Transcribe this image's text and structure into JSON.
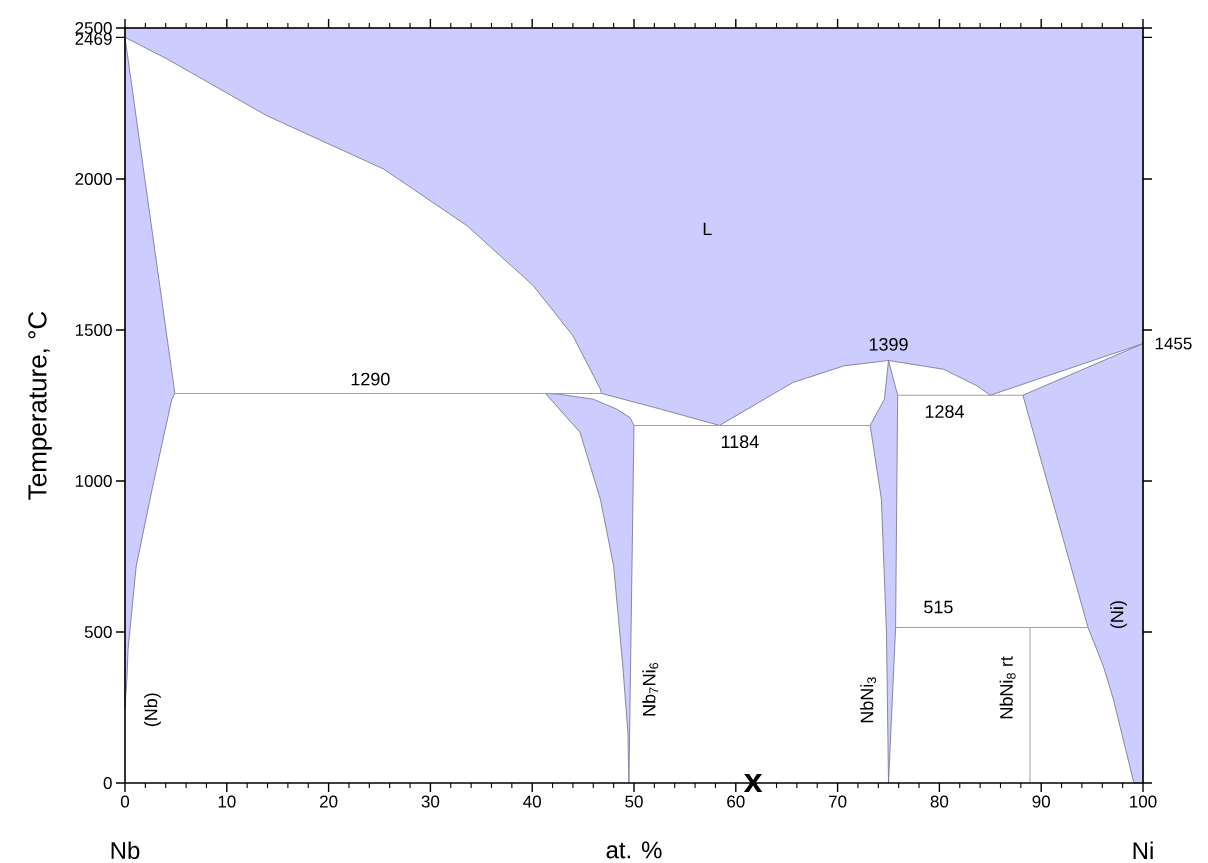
{
  "chart_data": {
    "type": "area",
    "xlabel": "at. %",
    "ylabel": "Temperature, °C",
    "xlim": [
      0,
      100
    ],
    "ylim": [
      0,
      2500
    ],
    "xticks": [
      0,
      10,
      20,
      30,
      40,
      50,
      60,
      70,
      80,
      90,
      100
    ],
    "yticks": [
      0,
      500,
      1000,
      1500,
      2000,
      2469,
      2500
    ],
    "series": [
      {
        "type": "area",
        "color": "#ccccff",
        "x": [
          0,
          4.1,
          13.9,
          25.4,
          33.6,
          40.1,
          44.0,
          46.7,
          46.8,
          52.6,
          58.4,
          65.6,
          70.6,
          75.0,
          80.4,
          83.7,
          85.0,
          100,
          100,
          0
        ],
        "values": [
          2469,
          2398,
          2210,
          2033,
          1845,
          1647,
          1481,
          1304,
          1290,
          1238,
          1184,
          1326,
          1381,
          1399,
          1370,
          1315,
          1284,
          1455,
          2500,
          2500
        ]
      },
      {
        "type": "area",
        "color": "#ccccff",
        "x": [
          0,
          4.9,
          4.6,
          2.8,
          1.1,
          0.3,
          0.2,
          0
        ],
        "values": [
          2469,
          1290,
          1270,
          995,
          718,
          442,
          353,
          250
        ]
      },
      {
        "type": "area",
        "color": "#ccccff",
        "x": [
          41.3,
          42.7,
          46.0,
          48.3,
          49.6,
          50.0,
          49.5,
          49.4,
          48.9,
          48.0,
          46.7,
          44.7
        ],
        "values": [
          1290,
          1287,
          1271,
          1238,
          1210,
          1184,
          0,
          166,
          387,
          718,
          939,
          1161
        ]
      },
      {
        "type": "area",
        "color": "#ccccff",
        "x": [
          75.0,
          75.9,
          75.7,
          75.0,
          74.8,
          74.3,
          73.2,
          74.6
        ],
        "values": [
          1399,
          1284,
          515,
          0,
          497,
          940,
          1184,
          1271
        ]
      },
      {
        "type": "area",
        "color": "#ccccff",
        "x": [
          88.2,
          100,
          100,
          99.1,
          97.1,
          96.1,
          94.6
        ],
        "values": [
          1284,
          1455,
          0,
          0,
          276,
          387,
          515
        ]
      },
      {
        "type": "line",
        "color": "#a0a0a0",
        "x": [
          4.9,
          46.8
        ],
        "values": [
          1290,
          1290
        ]
      },
      {
        "type": "line",
        "color": "#a0a0a0",
        "x": [
          50.0,
          73.2
        ],
        "values": [
          1184,
          1184
        ]
      },
      {
        "type": "line",
        "color": "#a0a0a0",
        "x": [
          75.9,
          88.2
        ],
        "values": [
          1284,
          1284
        ]
      },
      {
        "type": "line",
        "color": "#a0a0a0",
        "x": [
          75.7,
          94.6
        ],
        "values": [
          515,
          515
        ]
      },
      {
        "type": "line",
        "color": "#a0a0a0",
        "x": [
          88.9,
          88.9
        ],
        "values": [
          0,
          515
        ]
      }
    ],
    "annotations": [
      "L",
      "1290",
      "1184",
      "1399",
      "1284",
      "515",
      "(Nb)",
      "Nb$_{7}$Ni$_{6}$",
      "NbNi$_{3}$",
      "NbNi$_{8}$ rt",
      "(Ni)",
      "x",
      "Nb",
      "Ni",
      "1455"
    ]
  }
}
